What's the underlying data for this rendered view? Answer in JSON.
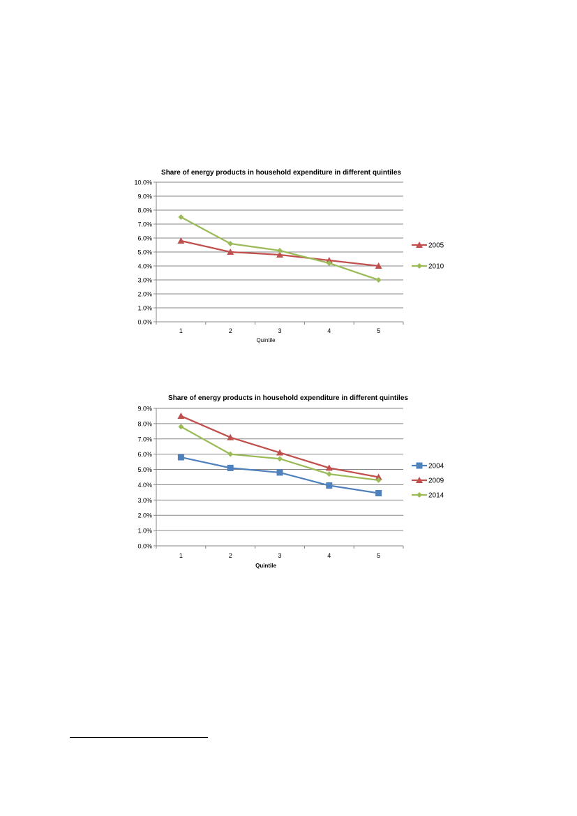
{
  "chart_data": [
    {
      "type": "line",
      "title": "Share of energy products in household expenditure in different quintiles",
      "xlabel": "Quintile",
      "ylabel": "",
      "categories": [
        "1",
        "2",
        "3",
        "4",
        "5"
      ],
      "ylim": [
        0,
        10
      ],
      "yticks": [
        "0.0%",
        "1.0%",
        "2.0%",
        "3.0%",
        "4.0%",
        "5.0%",
        "6.0%",
        "7.0%",
        "8.0%",
        "9.0%",
        "10.0%"
      ],
      "grid": true,
      "legend": "right",
      "series": [
        {
          "name": "2005",
          "values": [
            5.8,
            5.0,
            4.8,
            4.4,
            4.0
          ],
          "color": "#c0504d",
          "marker": "triangle"
        },
        {
          "name": "2010",
          "values": [
            7.5,
            5.6,
            5.1,
            4.2,
            3.0
          ],
          "color": "#9bbb59",
          "marker": "diamond"
        }
      ]
    },
    {
      "type": "line",
      "title": "Share of energy products in household expenditure in different quintiles",
      "xlabel": "Quintile",
      "ylabel": "",
      "categories": [
        "1",
        "2",
        "3",
        "4",
        "5"
      ],
      "ylim": [
        0,
        9
      ],
      "yticks": [
        "0.0%",
        "1.0%",
        "2.0%",
        "3.0%",
        "4.0%",
        "5.0%",
        "6.0%",
        "7.0%",
        "8.0%",
        "9.0%"
      ],
      "grid": true,
      "legend": "right",
      "series": [
        {
          "name": "2004",
          "values": [
            5.8,
            5.1,
            4.8,
            3.95,
            3.45
          ],
          "color": "#4f81bd",
          "marker": "square"
        },
        {
          "name": "2009",
          "values": [
            8.5,
            7.1,
            6.1,
            5.1,
            4.5
          ],
          "color": "#c0504d",
          "marker": "triangle"
        },
        {
          "name": "2014",
          "values": [
            7.8,
            6.0,
            5.7,
            4.7,
            4.3
          ],
          "color": "#9bbb59",
          "marker": "diamond"
        }
      ]
    }
  ]
}
